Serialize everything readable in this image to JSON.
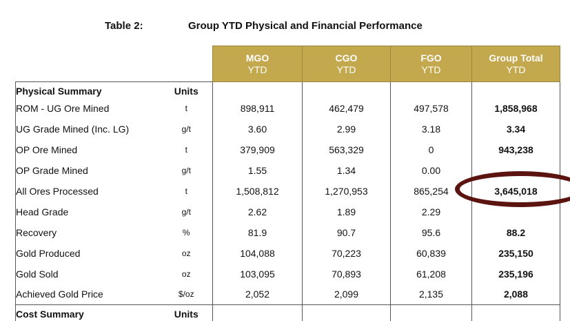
{
  "header": {
    "table_label": "Table 2:",
    "table_title": "Group YTD Physical and Financial Performance"
  },
  "columns": [
    {
      "top": "MGO",
      "bottom": "YTD"
    },
    {
      "top": "CGO",
      "bottom": "YTD"
    },
    {
      "top": "FGO",
      "bottom": "YTD"
    },
    {
      "top": "Group Total",
      "bottom": "YTD"
    }
  ],
  "physical_summary": {
    "label": "Physical Summary",
    "units_label": "Units",
    "rows": [
      {
        "label": "ROM - UG Ore Mined",
        "unit": "t",
        "mgo": "898,911",
        "cgo": "462,479",
        "fgo": "497,578",
        "total": "1,858,968"
      },
      {
        "label": "UG Grade Mined (Inc. LG)",
        "unit": "g/t",
        "mgo": "3.60",
        "cgo": "2.99",
        "fgo": "3.18",
        "total": "3.34"
      },
      {
        "label": "OP Ore Mined",
        "unit": "t",
        "mgo": "379,909",
        "cgo": "563,329",
        "fgo": "0",
        "total": "943,238"
      },
      {
        "label": "OP Grade Mined",
        "unit": "g/t",
        "mgo": "1.55",
        "cgo": "1.34",
        "fgo": "0.00",
        "total": ""
      },
      {
        "label": "All Ores Processed",
        "unit": "t",
        "mgo": "1,508,812",
        "cgo": "1,270,953",
        "fgo": "865,254",
        "total": "3,645,018"
      },
      {
        "label": "Head Grade",
        "unit": "g/t",
        "mgo": "2.62",
        "cgo": "1.89",
        "fgo": "2.29",
        "total": ""
      },
      {
        "label": "Recovery",
        "unit": "%",
        "mgo": "81.9",
        "cgo": "90.7",
        "fgo": "95.6",
        "total": "88.2"
      },
      {
        "label": "Gold Produced",
        "unit": "oz",
        "mgo": "104,088",
        "cgo": "70,223",
        "fgo": "60,839",
        "total": "235,150"
      },
      {
        "label": "Gold Sold",
        "unit": "oz",
        "mgo": "103,095",
        "cgo": "70,893",
        "fgo": "61,208",
        "total": "235,196"
      },
      {
        "label": "Achieved Gold Price",
        "unit": "$/oz",
        "mgo": "2,052",
        "cgo": "2,099",
        "fgo": "2,135",
        "total": "2,088"
      }
    ]
  },
  "cost_summary": {
    "label": "Cost Summary",
    "units_label": "Units"
  },
  "annotation": {
    "oval_color": "#5b1410"
  },
  "colors": {
    "header_gold": "#c4a84e"
  }
}
